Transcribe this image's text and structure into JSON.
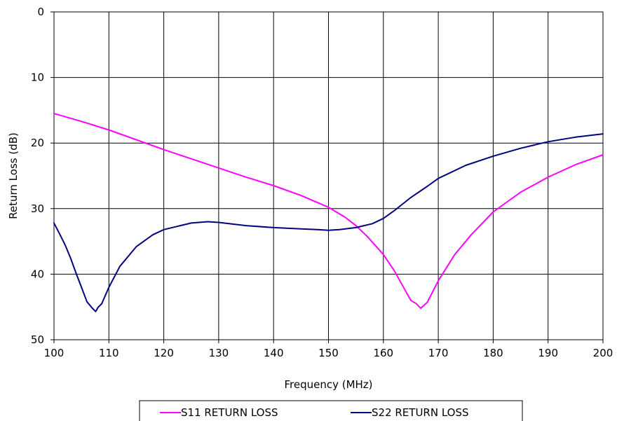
{
  "chart_data": {
    "type": "line",
    "title": "",
    "xlabel": "Frequency (MHz)",
    "ylabel": "Return Loss (dB)",
    "xlim": [
      100,
      200
    ],
    "ylim": [
      0,
      50
    ],
    "y_inverted": true,
    "grid": true,
    "legend_position": "bottom",
    "x_ticks": [
      "100",
      "110",
      "120",
      "130",
      "140",
      "150",
      "160",
      "170",
      "180",
      "190",
      "200"
    ],
    "y_ticks": [
      "0",
      "10",
      "20",
      "30",
      "40",
      "50"
    ],
    "series": [
      {
        "name": "S11 RETURN LOSS",
        "color": "#ff00ff",
        "x": [
          100,
          105,
          110,
          115,
          120,
          125,
          130,
          135,
          140,
          145,
          150,
          153,
          155,
          157,
          160,
          162,
          164,
          165,
          166,
          166.8,
          168,
          170,
          173,
          176,
          180,
          185,
          190,
          195,
          200
        ],
        "y": [
          15.5,
          16.7,
          18.0,
          19.5,
          21.0,
          22.4,
          23.8,
          25.2,
          26.5,
          28.0,
          29.8,
          31.3,
          32.6,
          34.2,
          37.0,
          39.5,
          42.5,
          44.0,
          44.5,
          45.2,
          44.3,
          41.0,
          37.0,
          34.0,
          30.5,
          27.5,
          25.2,
          23.3,
          21.8
        ]
      },
      {
        "name": "S22 RETURN LOSS",
        "color": "#000080",
        "x": [
          100,
          101,
          102,
          103,
          104,
          105,
          106,
          107,
          107.6,
          108,
          108.7,
          110,
          112,
          115,
          118,
          120,
          123,
          125,
          128,
          130,
          135,
          140,
          145,
          148,
          150,
          152,
          155,
          158,
          160,
          162,
          165,
          168,
          170,
          175,
          180,
          185,
          190,
          195,
          200
        ],
        "y": [
          32.2,
          33.8,
          35.5,
          37.5,
          39.8,
          42.0,
          44.2,
          45.2,
          45.7,
          45.1,
          44.5,
          42.0,
          38.8,
          35.8,
          34.0,
          33.2,
          32.6,
          32.2,
          32.0,
          32.1,
          32.6,
          32.9,
          33.1,
          33.2,
          33.3,
          33.2,
          32.9,
          32.3,
          31.5,
          30.3,
          28.3,
          26.6,
          25.4,
          23.4,
          22.0,
          20.8,
          19.8,
          19.1,
          18.6
        ]
      }
    ]
  }
}
